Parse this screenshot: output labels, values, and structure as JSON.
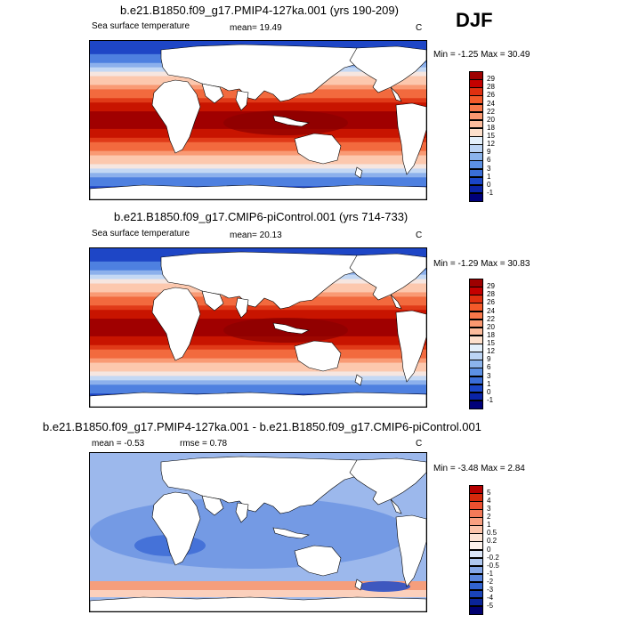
{
  "figure": {
    "season": "DJF",
    "panels": [
      {
        "id": "p1",
        "title": "b.e21.B1850.f09_g17.PMIP4-127ka.001 (yrs 190-209)",
        "left_label": "Sea surface temperature",
        "center_label": "mean=  19.49",
        "units": "C",
        "minmax_label": "Min =  -1.25 Max =  30.49",
        "colorbar": {
          "ticks": [
            "29",
            "28",
            "26",
            "24",
            "22",
            "20",
            "18",
            "15",
            "12",
            "9",
            "6",
            "3",
            "1",
            "0",
            "-1"
          ],
          "colors": [
            "#9e0000",
            "#c40000",
            "#e03010",
            "#f45a2a",
            "#f8784a",
            "#fa9870",
            "#fcbc9c",
            "#fde0cc",
            "#e4f0fb",
            "#bcd4f4",
            "#8cb4ec",
            "#5c90e4",
            "#3a6ed8",
            "#1a46c8",
            "#0a24a8",
            "#00007a"
          ]
        },
        "mode": "sst"
      },
      {
        "id": "p2",
        "title": "b.e21.B1850.f09_g17.CMIP6-piControl.001 (yrs 714-733)",
        "left_label": "Sea surface temperature",
        "center_label": "mean=  20.13",
        "units": "C",
        "minmax_label": "Min =  -1.29 Max =  30.83",
        "colorbar": {
          "ticks": [
            "29",
            "28",
            "26",
            "24",
            "22",
            "20",
            "18",
            "15",
            "12",
            "9",
            "6",
            "3",
            "1",
            "0",
            "-1"
          ],
          "colors": [
            "#9e0000",
            "#c40000",
            "#e03010",
            "#f45a2a",
            "#f8784a",
            "#fa9870",
            "#fcbc9c",
            "#fde0cc",
            "#e4f0fb",
            "#bcd4f4",
            "#8cb4ec",
            "#5c90e4",
            "#3a6ed8",
            "#1a46c8",
            "#0a24a8",
            "#00007a"
          ]
        },
        "mode": "sst"
      },
      {
        "id": "p3",
        "title": "b.e21.B1850.f09_g17.PMIP4-127ka.001 - b.e21.B1850.f09_g17.CMIP6-piControl.001",
        "left_label": "mean =  -0.53",
        "center_label": "rmse =   0.78",
        "units": "C",
        "minmax_label": "Min =  -3.48 Max =   2.84",
        "colorbar": {
          "ticks": [
            "5",
            "4",
            "3",
            "2",
            "1",
            "0.5",
            "0.2",
            "0",
            "-0.2",
            "-0.5",
            "-1",
            "-2",
            "-3",
            "-4",
            "-5"
          ],
          "colors": [
            "#b50000",
            "#d42a0c",
            "#ec5030",
            "#f47a58",
            "#f9a080",
            "#fcc4aa",
            "#fde3d4",
            "#fdf2ec",
            "#dbe6f8",
            "#b0c8f0",
            "#86a8e8",
            "#5a86de",
            "#3264d0",
            "#1a44b8",
            "#0a2498",
            "#000070"
          ]
        },
        "mode": "diff"
      }
    ]
  }
}
